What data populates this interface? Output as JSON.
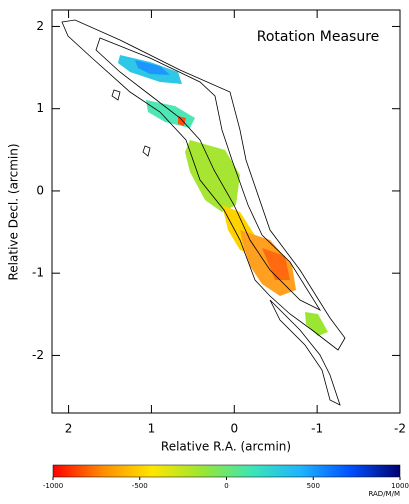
{
  "chart_data": {
    "type": "map",
    "title": "Rotation Measure",
    "xlabel": "Relative R.A. (arcmin)",
    "ylabel": "Relative Decl. (arcmin)",
    "xlim": [
      2.2,
      -2
    ],
    "xticks": [
      2,
      1,
      0,
      -1,
      -2
    ],
    "ylim": [
      -2.7,
      2.2
    ],
    "yticks": [
      2,
      1,
      0,
      -1,
      -2
    ],
    "colorbar": {
      "lim": [
        -1000,
        1000
      ],
      "ticks": [
        -1000,
        -500,
        0,
        500,
        1000
      ],
      "label": "RAD/M/M",
      "colors": [
        "#ff0000",
        "#ff8c00",
        "#ffe600",
        "#9be632",
        "#3ce6b4",
        "#1eb4ff",
        "#0050ff",
        "#000070"
      ]
    }
  }
}
